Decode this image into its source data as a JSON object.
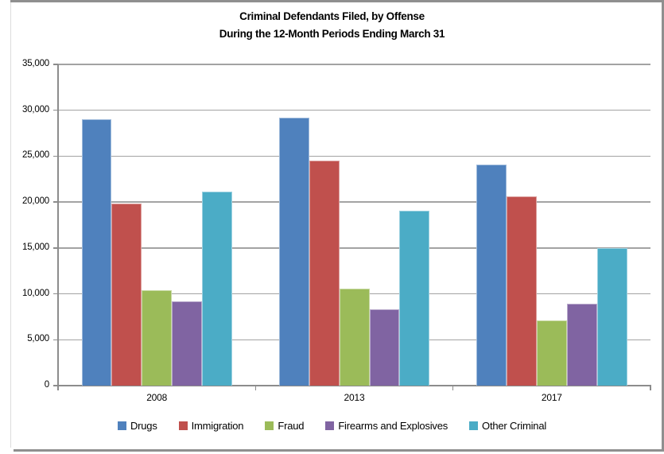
{
  "page": {
    "frame_color": "#8f8f8f",
    "left_edge_color": "#dcdcdc",
    "background": "#ffffff"
  },
  "chart_data": {
    "type": "bar",
    "title_line1": "Criminal Defendants Filed, by Offense",
    "title_line2": "During the 12-Month Periods Ending March 31",
    "categories": [
      "2008",
      "2013",
      "2017"
    ],
    "series": [
      {
        "name": "Drugs",
        "color": "#4F81BD",
        "values": [
          29000,
          29200,
          24100
        ]
      },
      {
        "name": "Immigration",
        "color": "#C0504D",
        "values": [
          19800,
          24500,
          20600
        ]
      },
      {
        "name": "Fraud",
        "color": "#9BBB59",
        "values": [
          10400,
          10600,
          7100
        ]
      },
      {
        "name": "Firearms and Explosives",
        "color": "#8064A2",
        "values": [
          9200,
          8300,
          8900
        ]
      },
      {
        "name": "Other Criminal",
        "color": "#4BACC6",
        "values": [
          21100,
          19100,
          15000
        ]
      }
    ],
    "ylim": [
      0,
      35000
    ],
    "y_step": 5000,
    "y_tick_labels": [
      "0",
      "5,000",
      "10,000",
      "15,000",
      "20,000",
      "25,000",
      "30,000",
      "35,000"
    ],
    "xlabel": "",
    "ylabel": "",
    "grid": true,
    "legend_position": "bottom",
    "gridline_color": "#a3a3a3",
    "axis_color": "#8c8c8c"
  }
}
